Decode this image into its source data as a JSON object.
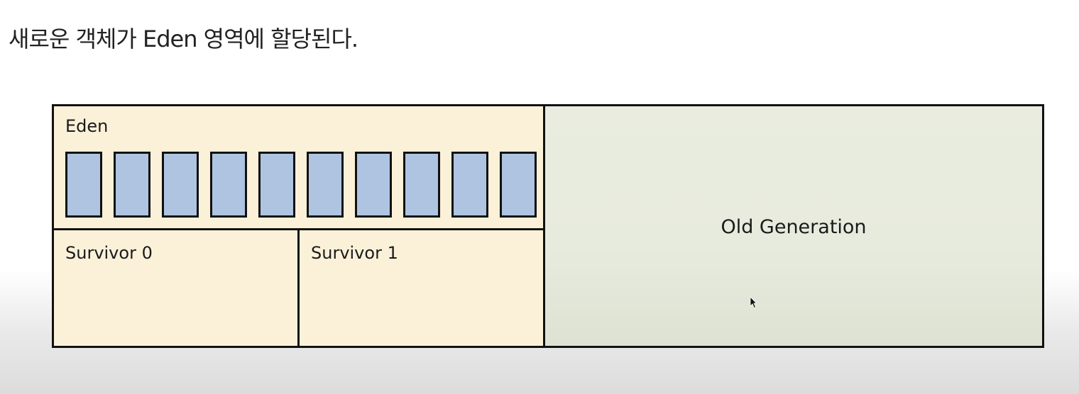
{
  "title": "새로운 객체가 Eden 영역에 할당된다.",
  "heap": {
    "eden": {
      "label": "Eden",
      "object_count": 10,
      "object_color": "#aec4e1"
    },
    "survivor0": {
      "label": "Survivor 0"
    },
    "survivor1": {
      "label": "Survivor 1"
    },
    "old_generation": {
      "label": "Old Generation"
    }
  },
  "colors": {
    "young_generation": "#fbf1d9",
    "old_generation": "#e9ecdf",
    "border": "#111111"
  }
}
